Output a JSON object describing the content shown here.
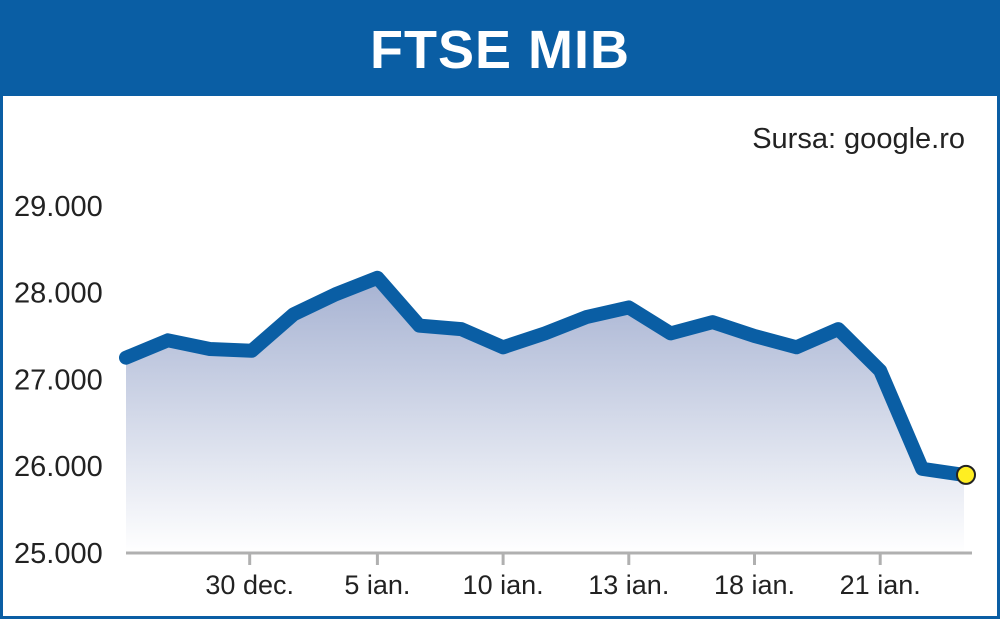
{
  "header": {
    "title": "FTSE MIB"
  },
  "source": "Sursa: google.ro",
  "colors": {
    "header": "#0a5ea4",
    "line": "#0a5ea4",
    "fill_top": "#a6b2d2",
    "marker": "#ffee22",
    "axis": "#b0b0b0"
  },
  "chart_data": {
    "type": "area",
    "title": "FTSE MIB",
    "xlabel": "",
    "ylabel": "",
    "ylim": [
      25000,
      29500
    ],
    "yticks": [
      25000,
      26000,
      27000,
      28000,
      29000
    ],
    "ytick_labels": [
      "25.000",
      "26.000",
      "27.000",
      "28.000",
      "29.000"
    ],
    "xtick_labels": [
      {
        "label": "30 dec.",
        "index": 3
      },
      {
        "label": "5 ian.",
        "index": 6
      },
      {
        "label": "10 ian.",
        "index": 9
      },
      {
        "label": "13 ian.",
        "index": 12
      },
      {
        "label": "18 ian.",
        "index": 15
      },
      {
        "label": "21 ian.",
        "index": 18
      }
    ],
    "values": [
      27250,
      27450,
      27350,
      27330,
      27750,
      27980,
      28170,
      27620,
      27580,
      27370,
      27530,
      27720,
      27830,
      27530,
      27660,
      27500,
      27370,
      27580,
      27100,
      25970,
      25900
    ],
    "last_point_marker": true
  }
}
